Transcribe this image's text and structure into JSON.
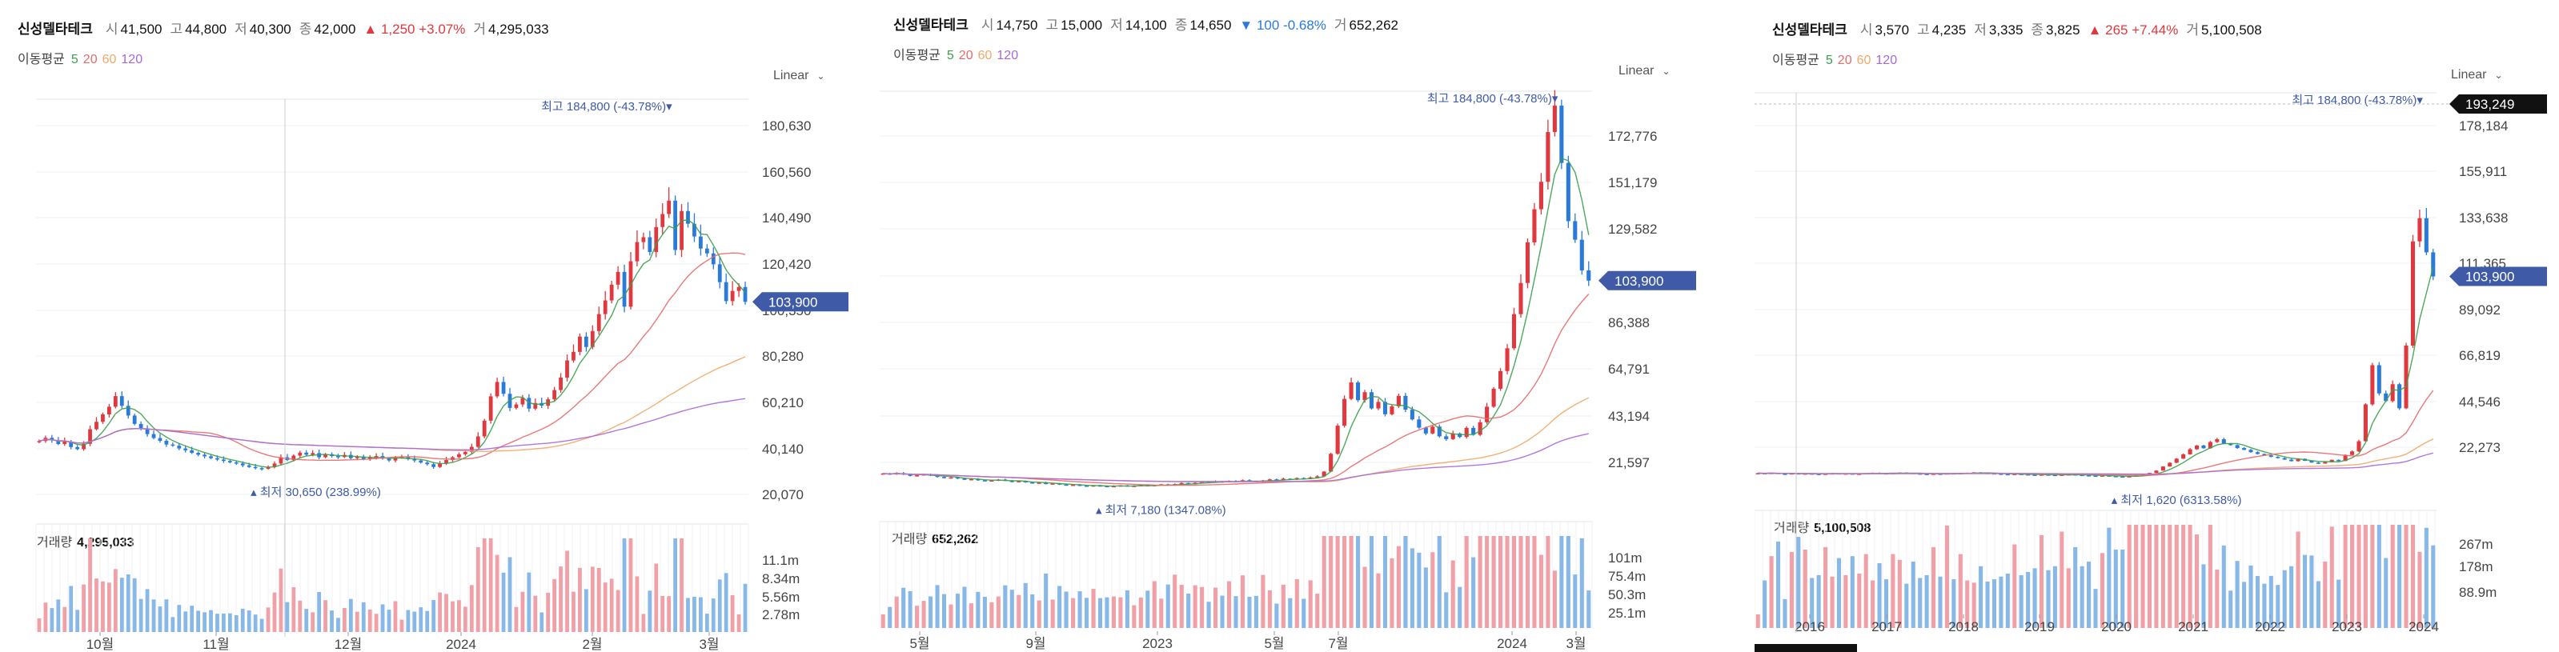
{
  "stock_name": "신성델타테크",
  "ma_label": "이동평균",
  "scale_label": "Linear",
  "volume_label": "거래량",
  "colors": {
    "up": "#e0383e",
    "down": "#2a7ad9",
    "ma5": "#3aa04a",
    "ma20": "#e66a6a",
    "ma60": "#f0a868",
    "ma120": "#a768d8",
    "price_tag": "#3f5aa6",
    "vol_up": "#f0a0a6",
    "vol_down": "#88b8e8"
  },
  "panels": [
    {
      "header": [
        {
          "k": "시",
          "v": "41,500"
        },
        {
          "k": "고",
          "v": "44,800"
        },
        {
          "k": "저",
          "v": "40,300"
        },
        {
          "k": "종",
          "v": "42,000"
        },
        {
          "k": "",
          "v": "▲ 1,250 +3.07%",
          "dir": "up"
        },
        {
          "k": "거",
          "v": "4,295,033"
        }
      ],
      "ma_periods": [
        "5",
        "20",
        "60",
        "120"
      ],
      "volume_value": "4,295,033",
      "chart_data": {
        "type": "candlestick",
        "y_ticks": [
          "180,630",
          "160,560",
          "140,490",
          "120,420",
          "100,350",
          "80,280",
          "60,210",
          "40,140",
          "20,070"
        ],
        "ylim": [
          20070,
          190000
        ],
        "x_ticks": [
          "10월",
          "11월",
          "12월",
          "2024",
          "2월",
          "3월"
        ],
        "current_price": "103,900",
        "high_label": "최고 184,800 (-43.78%)▾",
        "low_label": "▴ 최저 30,650 (238.99%)",
        "volume_ticks": [
          "11.1m",
          "8.34m",
          "5.56m",
          "2.78m"
        ],
        "closes": [
          43800,
          45200,
          44100,
          42500,
          43600,
          41200,
          40300,
          42600,
          48900,
          52100,
          55300,
          58600,
          63200,
          59000,
          54800,
          51200,
          49300,
          46800,
          45100,
          43900,
          42300,
          41800,
          40600,
          39800,
          38700,
          37900,
          37200,
          36400,
          35800,
          35200,
          34600,
          34100,
          33300,
          32600,
          32100,
          31800,
          32600,
          34100,
          36800,
          35600,
          37500,
          38800,
          37900,
          38600,
          36800,
          38100,
          37300,
          36900,
          37800,
          36400,
          37100,
          35900,
          36700,
          37300,
          36200,
          35400,
          36600,
          36900,
          36100,
          35400,
          34500,
          33800,
          32600,
          34100,
          35600,
          36800,
          38100,
          39100,
          41300,
          45800,
          52600,
          63100,
          69300,
          64200,
          58100,
          59600,
          62400,
          57800,
          60200,
          59100,
          61800,
          65800,
          71200,
          78600,
          82300,
          88900,
          84400,
          91300,
          98600,
          104500,
          111300,
          116800,
          101800,
          121400,
          129700,
          131800,
          125400,
          136200,
          141800,
          147600,
          126300,
          143100,
          137600,
          132100,
          126900,
          124800,
          120100,
          112400,
          104200,
          108600,
          110300,
          103900
        ]
      }
    },
    {
      "header": [
        {
          "k": "시",
          "v": "14,750"
        },
        {
          "k": "고",
          "v": "15,000"
        },
        {
          "k": "저",
          "v": "14,100"
        },
        {
          "k": "종",
          "v": "14,650"
        },
        {
          "k": "",
          "v": "▼ 100 -0.68%",
          "dir": "dn"
        },
        {
          "k": "거",
          "v": "652,262"
        }
      ],
      "ma_periods": [
        "5",
        "20",
        "60",
        "120"
      ],
      "volume_value": "652,262",
      "chart_data": {
        "type": "candlestick",
        "y_ticks": [
          "172,776",
          "151,179",
          "129,582",
          "107,985",
          "86,388",
          "64,791",
          "43,194",
          "21,597"
        ],
        "ylim": [
          8000,
          190000
        ],
        "x_ticks": [
          "5월",
          "9월",
          "2023",
          "5월",
          "7월",
          "2024",
          "3월"
        ],
        "current_price": "103,900",
        "high_label": "최고 184,800 (-43.78%)▾",
        "low_label": "▴ 최저 7,180 (1347.08%)",
        "volume_ticks": [
          "101m",
          "75.4m",
          "50.3m",
          "25.1m"
        ],
        "closes": [
          14700,
          14400,
          14900,
          14200,
          13600,
          13900,
          14300,
          13800,
          13100,
          12600,
          12900,
          12400,
          11800,
          12100,
          11600,
          11200,
          11500,
          11900,
          11300,
          10800,
          11200,
          10600,
          10200,
          10500,
          9800,
          10100,
          9600,
          9200,
          9500,
          9100,
          8800,
          9200,
          8900,
          8600,
          8900,
          9200,
          8800,
          9000,
          9300,
          8900,
          9400,
          9700,
          9200,
          9800,
          10300,
          9900,
          10400,
          10900,
          10600,
          11100,
          10700,
          11300,
          10900,
          11600,
          11200,
          10800,
          11500,
          12000,
          11700,
          12300,
          11900,
          12600,
          12200,
          12900,
          13400,
          15600,
          23800,
          36800,
          49200,
          56800,
          48600,
          52300,
          44800,
          47800,
          42100,
          45800,
          50600,
          44200,
          39700,
          35900,
          33200,
          36400,
          31900,
          30600,
          33200,
          31600,
          35800,
          32600,
          38400,
          45600,
          53900,
          62100,
          72600,
          88400,
          102800,
          121600,
          136900,
          149600,
          172600,
          184800,
          158300,
          131400,
          122800,
          108600,
          103900
        ]
      }
    },
    {
      "header": [
        {
          "k": "시",
          "v": "3,570"
        },
        {
          "k": "고",
          "v": "4,235"
        },
        {
          "k": "저",
          "v": "3,335"
        },
        {
          "k": "종",
          "v": "3,825"
        },
        {
          "k": "",
          "v": "▲ 265 +7.44%",
          "dir": "up"
        },
        {
          "k": "거",
          "v": "5,100,508"
        }
      ],
      "ma_periods": [
        "5",
        "20",
        "60",
        "120"
      ],
      "volume_value": "5,100,508",
      "chart_data": {
        "type": "candlestick",
        "y_ticks": [
          "178,184",
          "155,911",
          "133,638",
          "111,365",
          "89,092",
          "66,819",
          "44,546",
          "22,273"
        ],
        "ylim": [
          0,
          196000
        ],
        "x_ticks": [
          "2016",
          "2017",
          "2018",
          "2019",
          "2020",
          "2021",
          "2022",
          "2023",
          "2024"
        ],
        "current_price": "103,900",
        "hover_price": "193,249",
        "high_label": "최고 184,800 (-43.78%)▾",
        "low_label": "▴ 최저 1,620 (6313.58%)",
        "volume_ticks": [
          "267m",
          "178m",
          "88.9m"
        ],
        "closes": [
          3500,
          3300,
          3600,
          3200,
          3100,
          3400,
          3000,
          3300,
          3100,
          2900,
          3200,
          3400,
          3100,
          3300,
          3000,
          3200,
          3500,
          3700,
          3400,
          3200,
          3500,
          3800,
          3600,
          3300,
          3100,
          2900,
          3200,
          3000,
          3400,
          3200,
          3500,
          3700,
          3900,
          3600,
          3400,
          3200,
          3000,
          2800,
          3100,
          2900,
          2700,
          2500,
          2800,
          2600,
          2400,
          2700,
          2900,
          2600,
          2400,
          2200,
          2100,
          2300,
          2000,
          1800,
          1620,
          1900,
          2300,
          2800,
          3600,
          4800,
          6900,
          8800,
          10900,
          13100,
          15700,
          17600,
          16200,
          19400,
          20800,
          18600,
          17800,
          16300,
          15400,
          14200,
          13300,
          12600,
          11800,
          11200,
          10400,
          9600,
          10800,
          9800,
          8900,
          8400,
          9100,
          10300,
          9700,
          12800,
          14600,
          19800,
          38600,
          58600,
          44200,
          40300,
          48900,
          36600,
          68600,
          121800,
          133600,
          116200,
          103900
        ]
      }
    }
  ]
}
